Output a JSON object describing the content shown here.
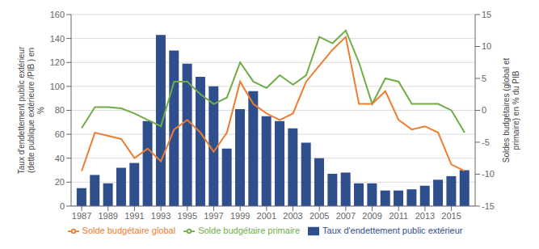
{
  "chart_data": {
    "type": "bar",
    "x": [
      1987,
      1988,
      1989,
      1990,
      1991,
      1992,
      1993,
      1994,
      1995,
      1996,
      1997,
      1998,
      1999,
      2000,
      2001,
      2002,
      2003,
      2004,
      2005,
      2006,
      2007,
      2008,
      2009,
      2010,
      2011,
      2012,
      2013,
      2014,
      2015,
      2016
    ],
    "xlim": [
      1986.2,
      2016.8
    ],
    "xticks": [
      1987,
      1989,
      1991,
      1993,
      1995,
      1997,
      1999,
      2001,
      2003,
      2005,
      2007,
      2009,
      2011,
      2013,
      2015
    ],
    "ylim": [
      0,
      160
    ],
    "yticks": [
      0,
      20,
      40,
      60,
      80,
      100,
      120,
      140,
      160
    ],
    "y2lim": [
      -15,
      15
    ],
    "y2ticks": [
      -15,
      -10,
      -5,
      0,
      5,
      10,
      15
    ],
    "ylabel": "Taux d'endettement public extérieur\n(dette publique extérieure /PIB ) en\n%",
    "y2label": "Soldes budgétaires (global et\nprimaire) en % du PIB",
    "grid": true,
    "legend": "bottom",
    "series": [
      {
        "name": "Taux d'endettement public extérieur",
        "type": "bar",
        "color": "#2E4F8C",
        "values": [
          15,
          26,
          19,
          32,
          36,
          71,
          143,
          130,
          119,
          108,
          100,
          48,
          81,
          96,
          75,
          71,
          65,
          53,
          40,
          27,
          28,
          19,
          19,
          13,
          13,
          14,
          17,
          22,
          25,
          30
        ]
      },
      {
        "name": "Solde budgétaire primaire",
        "type": "line",
        "color": "#70AD47",
        "axis": "y2",
        "values": [
          -2.8,
          0.5,
          0.5,
          0.3,
          -0.5,
          -1.5,
          -2.5,
          4.5,
          4.5,
          2.5,
          1.0,
          2.0,
          7.5,
          4.5,
          3.5,
          5.5,
          4.0,
          5.5,
          11.5,
          10.5,
          12.5,
          7.5,
          1.0,
          5.0,
          4.5,
          1.0,
          1.0,
          1.0,
          0.0,
          -3.5
        ]
      },
      {
        "name": "Solde budgétaire global",
        "type": "line",
        "color": "#ED7D31",
        "axis": "y2",
        "values": [
          -9.5,
          -3.5,
          -4.0,
          -4.5,
          -7.5,
          -6.0,
          -8.0,
          -3.0,
          -1.5,
          -3.5,
          -6.5,
          -3.5,
          4.5,
          1.0,
          -0.5,
          -1.5,
          -0.5,
          4.5,
          7.0,
          9.5,
          11.5,
          1.0,
          1.0,
          3.0,
          -1.5,
          -3.0,
          -2.5,
          -3.5,
          -8.5,
          -9.5
        ]
      }
    ]
  }
}
